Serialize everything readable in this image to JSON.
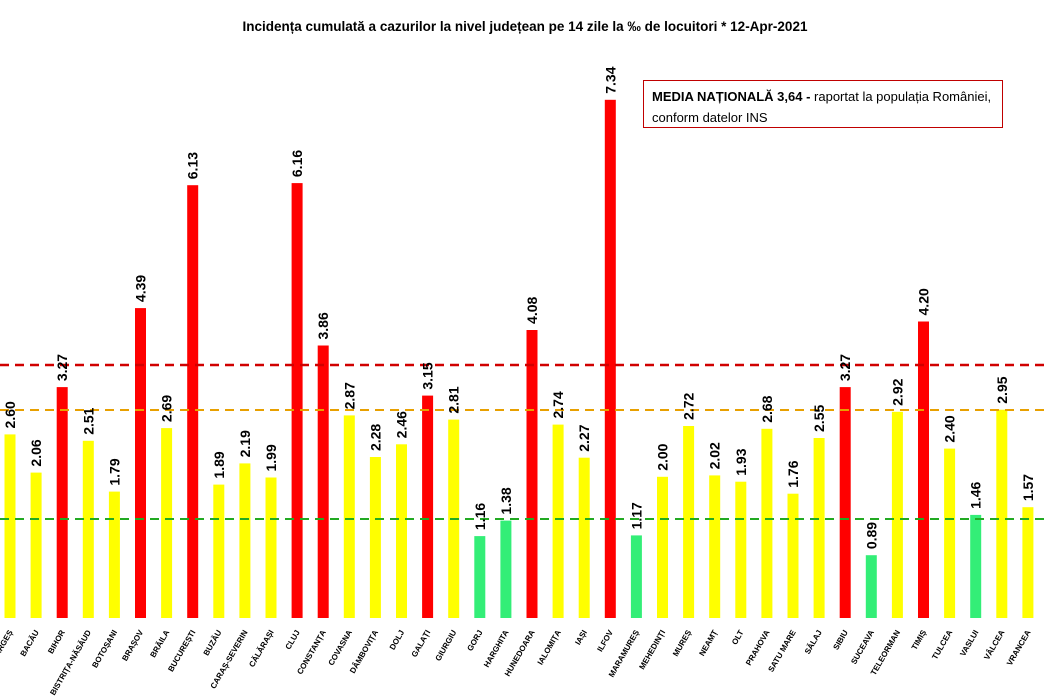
{
  "chart_data": {
    "type": "bar",
    "title": "Incidența cumulată a cazurilor la nivel județean pe 14 zile la ‰ de locuitori *   12-Apr-2021",
    "categories": [
      "ARGEȘ",
      "BACĂU",
      "BIHOR",
      "BISTRIȚA-NĂSĂUD",
      "BOTOȘANI",
      "BRAȘOV",
      "BRĂILA",
      "BUCUREȘTI",
      "BUZĂU",
      "CARAȘ-SEVERIN",
      "CĂLĂRAȘI",
      "CLUJ",
      "CONSTANȚA",
      "COVASNA",
      "DÂMBOVIȚA",
      "DOLJ",
      "GALAȚI",
      "GIURGIU",
      "GORJ",
      "HARGHITA",
      "HUNEDOARA",
      "IALOMIȚA",
      "IAȘI",
      "ILFOV",
      "MARAMUREȘ",
      "MEHEDINȚI",
      "MUREȘ",
      "NEAMȚ",
      "OLT",
      "PRAHOVA",
      "SATU MARE",
      "SĂLAJ",
      "SIBIU",
      "SUCEAVA",
      "TELEORMAN",
      "TIMIȘ",
      "TULCEA",
      "VASLUI",
      "VÂLCEA",
      "VRANCEA"
    ],
    "value_labels": [
      "2.60",
      "2.06",
      "3.27",
      "2.51",
      "1.79",
      "4.39",
      "2.69",
      "6.13",
      "1.89",
      "2.19",
      "1.99",
      "6.16",
      "3.86",
      "2.87",
      "2.28",
      "2.46",
      "3.15",
      "2.81",
      "1.16",
      "1.38",
      "4.08",
      "2.74",
      "2.27",
      "7.34",
      "1.17",
      "2.00",
      "2.72",
      "2.02",
      "1.93",
      "2.68",
      "1.76",
      "2.55",
      "3.27",
      "0.89",
      "2.92",
      "4.20",
      "2.40",
      "1.46",
      "2.95",
      "1.57"
    ],
    "values": [
      2.6,
      2.06,
      3.27,
      2.51,
      1.79,
      4.39,
      2.69,
      6.13,
      1.89,
      2.19,
      1.99,
      6.16,
      3.86,
      2.87,
      2.28,
      2.46,
      3.15,
      2.81,
      1.16,
      1.38,
      4.08,
      2.74,
      2.27,
      7.34,
      1.17,
      2.0,
      2.72,
      2.02,
      1.93,
      2.68,
      1.76,
      2.55,
      3.27,
      0.89,
      2.92,
      4.2,
      2.4,
      1.46,
      2.95,
      1.57
    ],
    "colors": [
      "#ffff00",
      "#ffff00",
      "#ff0000",
      "#ffff00",
      "#ffff00",
      "#ff0000",
      "#ffff00",
      "#ff0000",
      "#ffff00",
      "#ffff00",
      "#ffff00",
      "#ff0000",
      "#ff0000",
      "#ffff00",
      "#ffff00",
      "#ffff00",
      "#ff0000",
      "#ffff00",
      "#33ee77",
      "#33ee77",
      "#ff0000",
      "#ffff00",
      "#ffff00",
      "#ff0000",
      "#33ee77",
      "#ffff00",
      "#ffff00",
      "#ffff00",
      "#ffff00",
      "#ffff00",
      "#ffff00",
      "#ffff00",
      "#ff0000",
      "#33ee77",
      "#ffff00",
      "#ff0000",
      "#ffff00",
      "#33ee77",
      "#ffff00",
      "#ffff00"
    ],
    "thresholds": [
      {
        "value": 3.0,
        "color": "#d00000",
        "style": "dashed"
      },
      {
        "value": 1.5,
        "color": "#e8a000",
        "style": "dashed"
      },
      {
        "value": 1.5,
        "color": "#22aa22",
        "style": "dashed"
      }
    ],
    "ylim": [
      0,
      8
    ],
    "grid": false,
    "xlabel": "",
    "ylabel": ""
  },
  "annotation": {
    "bold_text": "MEDIA NAȚIONALĂ  3,64 -",
    "text_line1": " raportat la populația României,",
    "text_line2": "conform datelor INS"
  }
}
